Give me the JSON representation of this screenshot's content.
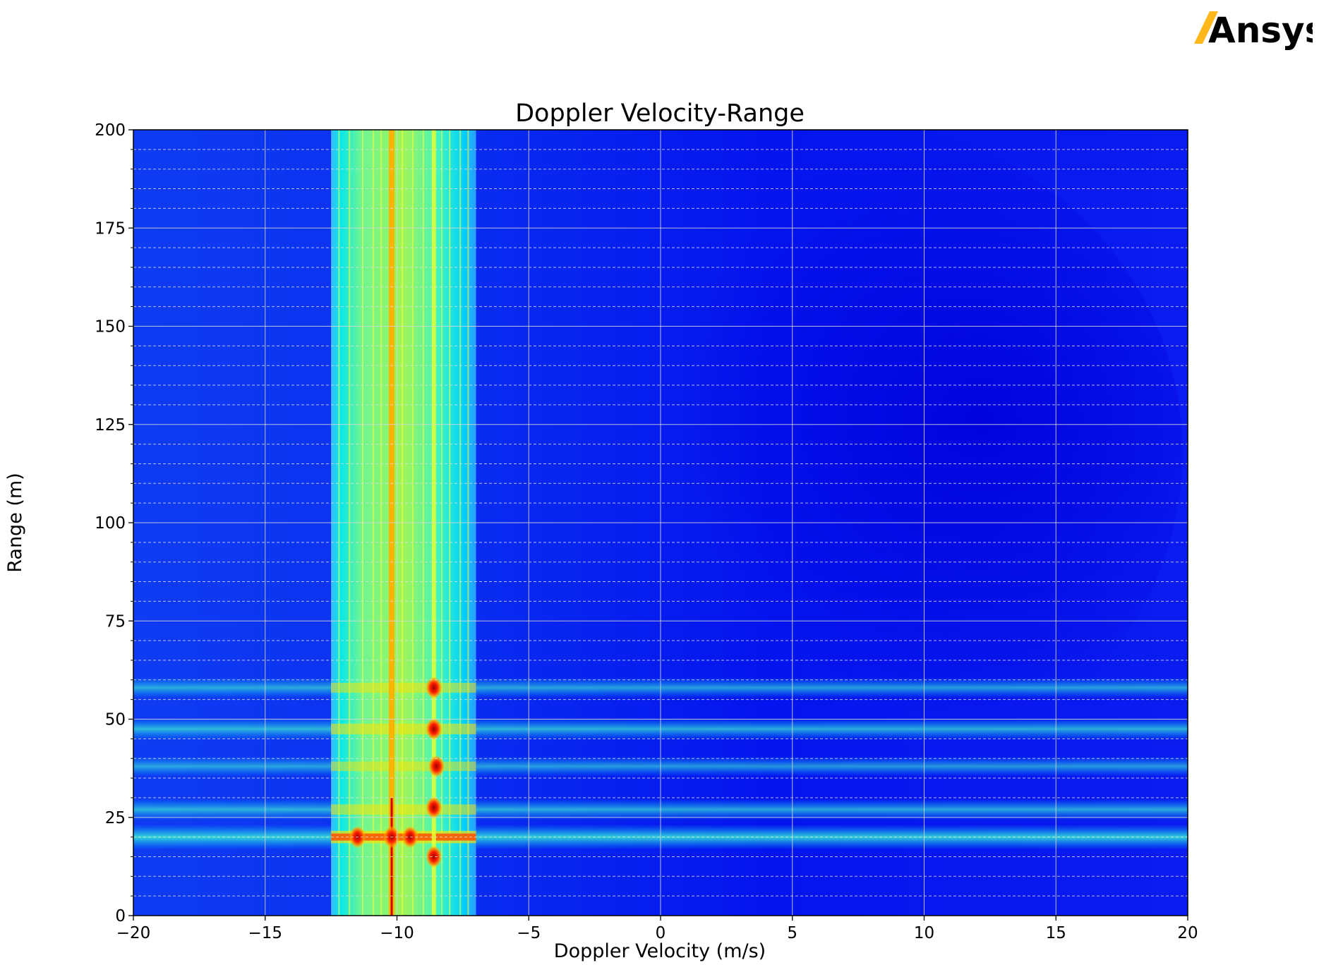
{
  "logo": {
    "text": "Ansys",
    "accent_color": "#FFB71B"
  },
  "chart_data": {
    "type": "heatmap",
    "title": "Doppler Velocity-Range",
    "xlabel": "Doppler Velocity (m/s)",
    "ylabel": "Range (m)",
    "xlim": [
      -20,
      20
    ],
    "ylim": [
      0,
      200
    ],
    "x_ticks": [
      -20,
      -15,
      -10,
      -5,
      0,
      5,
      10,
      15,
      20
    ],
    "x_tick_labels": [
      "−20",
      "−15",
      "−10",
      "−5",
      "0",
      "5",
      "10",
      "15",
      "20"
    ],
    "y_ticks": [
      0,
      25,
      50,
      75,
      100,
      125,
      150,
      175,
      200
    ],
    "y_tick_labels": [
      "0",
      "25",
      "50",
      "75",
      "100",
      "125",
      "150",
      "175",
      "200"
    ],
    "grid": true,
    "minor_grid_y_step": 5,
    "colormap": "jet",
    "colors": {
      "background": "#0a14f0",
      "low": "#0000d8",
      "mid": "#00e0ff",
      "high_yellow": "#ffe400",
      "peak": "#c00000"
    },
    "doppler_band": {
      "x_range": [
        -12.5,
        -7.0
      ],
      "main_line_x": -10.2,
      "secondary_line_x": -8.6
    },
    "range_bands": [
      {
        "y": 20,
        "strength": 0.75
      },
      {
        "y": 27,
        "strength": 0.45
      },
      {
        "y": 38,
        "strength": 0.35
      },
      {
        "y": 47.5,
        "strength": 0.5
      },
      {
        "y": 58,
        "strength": 0.4
      }
    ],
    "hotspots": [
      {
        "x": -10.2,
        "y": 20
      },
      {
        "x": -11.5,
        "y": 20
      },
      {
        "x": -9.5,
        "y": 20
      },
      {
        "x": -8.6,
        "y": 58
      },
      {
        "x": -8.6,
        "y": 47.5
      },
      {
        "x": -8.5,
        "y": 38
      },
      {
        "x": -8.6,
        "y": 27.5
      },
      {
        "x": -8.6,
        "y": 15
      }
    ]
  }
}
